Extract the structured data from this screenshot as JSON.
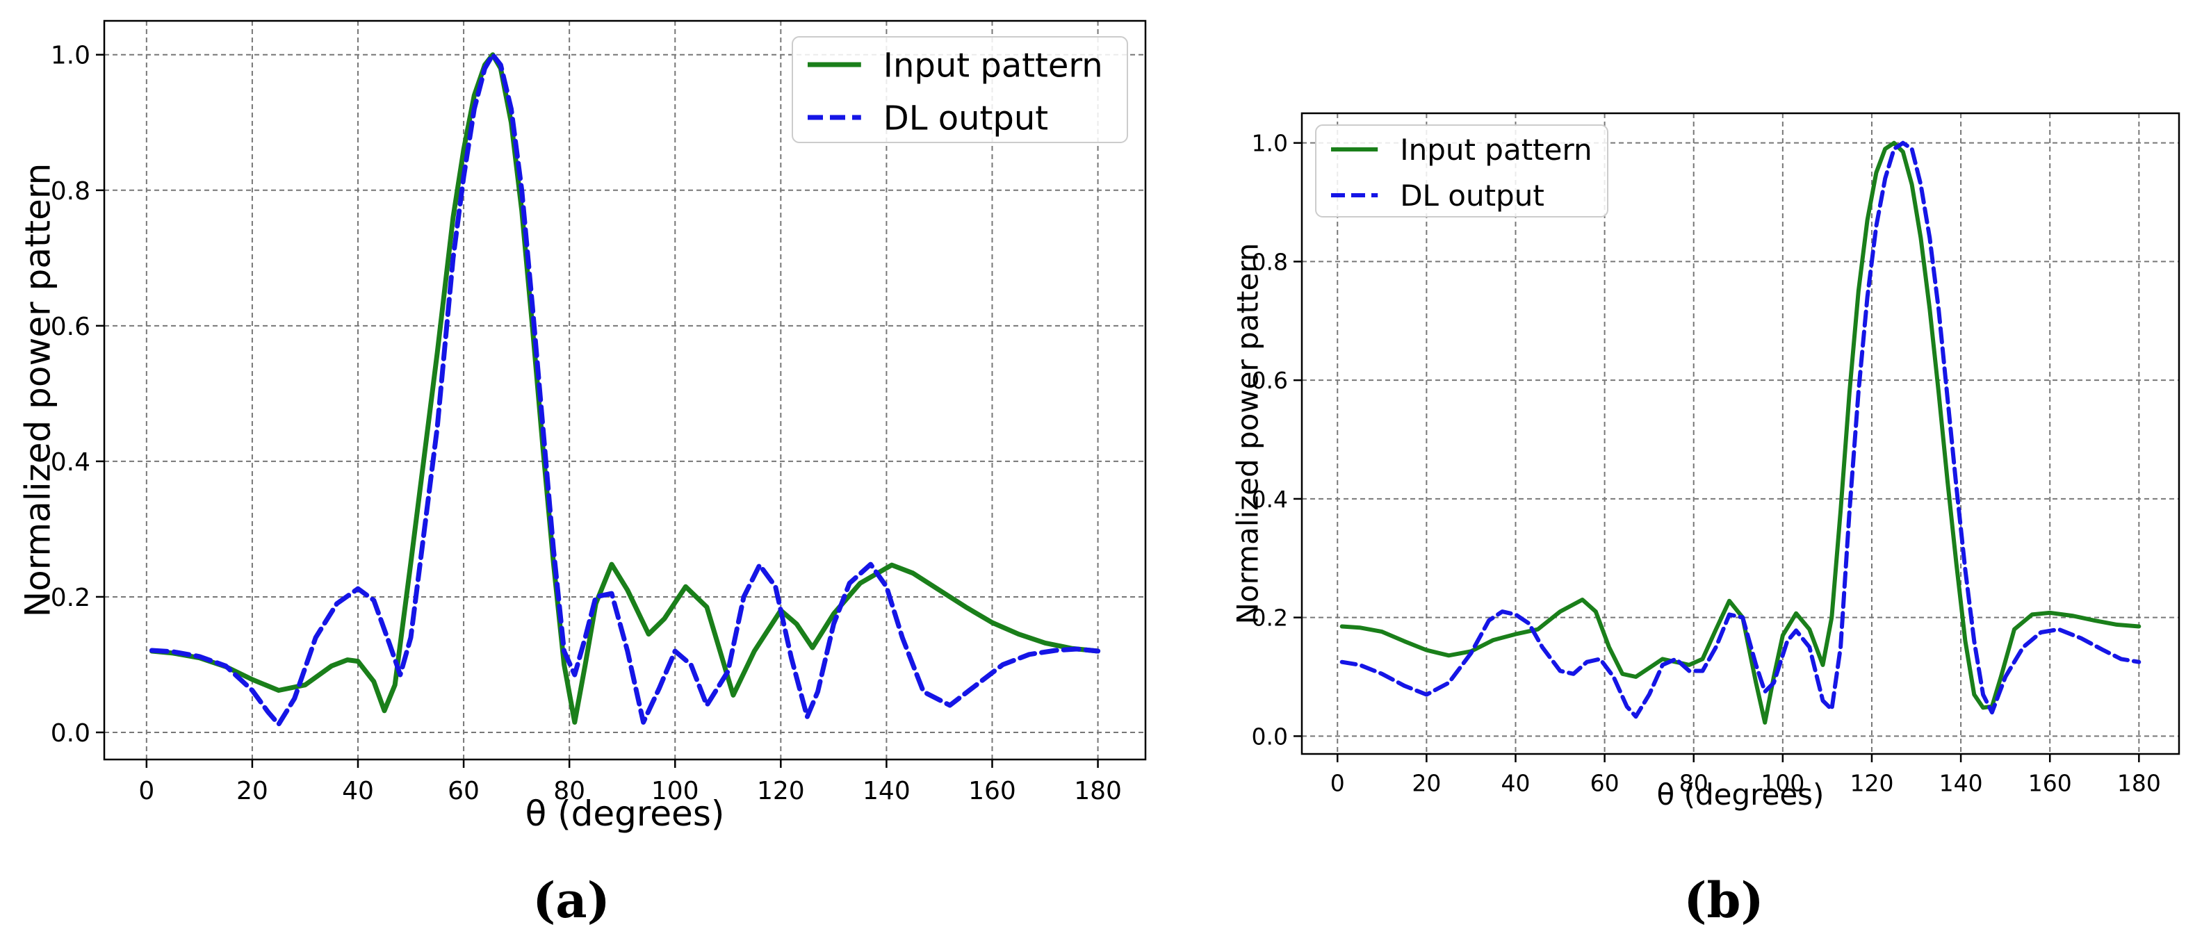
{
  "chart_data": [
    {
      "type": "line",
      "caption": "(a)",
      "xlabel": "θ (degrees)",
      "ylabel": "Normalized power pattern",
      "xlim": [
        -8,
        189
      ],
      "ylim": [
        -0.04,
        1.05
      ],
      "xticks": [
        0,
        20,
        40,
        60,
        80,
        100,
        120,
        140,
        160,
        180
      ],
      "yticks": [
        0.0,
        0.2,
        0.4,
        0.6,
        0.8,
        1.0
      ],
      "ytick_labels": [
        "0.0",
        "0.2",
        "0.4",
        "0.6",
        "0.8",
        "1.0"
      ],
      "grid": true,
      "legend_position": "top-right",
      "series": [
        {
          "name": "Input pattern",
          "color": "#1a7f1a",
          "style": "solid",
          "x": [
            1,
            5,
            10,
            15,
            20,
            25,
            30,
            35,
            38,
            40,
            43,
            45,
            47,
            50,
            55,
            58,
            60,
            62,
            64,
            65.5,
            67,
            69,
            71,
            73,
            75,
            77,
            79,
            81,
            83,
            85,
            88,
            91,
            95,
            98,
            102,
            106,
            111,
            115,
            120,
            123,
            126,
            130,
            135,
            141,
            145,
            150,
            155,
            160,
            165,
            170,
            175,
            180
          ],
          "y": [
            0.12,
            0.117,
            0.11,
            0.097,
            0.078,
            0.062,
            0.07,
            0.098,
            0.107,
            0.105,
            0.075,
            0.032,
            0.07,
            0.25,
            0.56,
            0.76,
            0.86,
            0.94,
            0.985,
            1.0,
            0.98,
            0.9,
            0.77,
            0.6,
            0.42,
            0.25,
            0.1,
            0.015,
            0.1,
            0.19,
            0.248,
            0.21,
            0.145,
            0.168,
            0.215,
            0.185,
            0.055,
            0.12,
            0.18,
            0.16,
            0.125,
            0.175,
            0.22,
            0.247,
            0.235,
            0.21,
            0.185,
            0.162,
            0.145,
            0.132,
            0.124,
            0.12
          ]
        },
        {
          "name": "DL output",
          "color": "#1515e6",
          "style": "dashed",
          "x": [
            1,
            5,
            10,
            15,
            20,
            23,
            25,
            28,
            32,
            36,
            40,
            43,
            46,
            48,
            50,
            55,
            58,
            60,
            62,
            64,
            65.5,
            67,
            69,
            71,
            73,
            75,
            77,
            79,
            81,
            83,
            85,
            88,
            91,
            94,
            97,
            100,
            103,
            106,
            110,
            113,
            116,
            119,
            122,
            125,
            127,
            130,
            133,
            137,
            140,
            143,
            147,
            152,
            157,
            162,
            167,
            172,
            176,
            180
          ],
          "y": [
            0.121,
            0.119,
            0.112,
            0.098,
            0.062,
            0.03,
            0.012,
            0.05,
            0.14,
            0.19,
            0.212,
            0.195,
            0.13,
            0.085,
            0.14,
            0.45,
            0.7,
            0.82,
            0.92,
            0.98,
            1.0,
            0.985,
            0.92,
            0.8,
            0.63,
            0.45,
            0.27,
            0.12,
            0.085,
            0.14,
            0.2,
            0.205,
            0.12,
            0.015,
            0.065,
            0.12,
            0.1,
            0.04,
            0.09,
            0.2,
            0.247,
            0.215,
            0.11,
            0.023,
            0.06,
            0.16,
            0.22,
            0.248,
            0.215,
            0.14,
            0.06,
            0.04,
            0.07,
            0.1,
            0.115,
            0.121,
            0.123,
            0.12
          ]
        }
      ]
    },
    {
      "type": "line",
      "caption": "(b)",
      "xlabel": "θ (degrees)",
      "ylabel": "Normalized power pattern",
      "xlim": [
        -8,
        189
      ],
      "ylim": [
        -0.03,
        1.05
      ],
      "xticks": [
        0,
        20,
        40,
        60,
        80,
        100,
        120,
        140,
        160,
        180
      ],
      "yticks": [
        0.0,
        0.2,
        0.4,
        0.6,
        0.8,
        1.0
      ],
      "ytick_labels": [
        "0.0",
        "0.2",
        "0.4",
        "0.6",
        "0.8",
        "1.0"
      ],
      "grid": true,
      "legend_position": "top-left",
      "series": [
        {
          "name": "Input pattern",
          "color": "#1a7f1a",
          "style": "solid",
          "x": [
            1,
            5,
            10,
            15,
            20,
            25,
            30,
            35,
            40,
            45,
            50,
            55,
            58,
            61,
            64,
            67,
            70,
            73,
            76,
            79,
            82,
            85,
            88,
            91,
            94,
            96,
            98,
            100,
            103,
            106,
            109,
            111,
            113,
            115,
            117,
            119,
            121,
            123,
            125,
            127,
            129,
            131,
            133,
            135,
            137,
            139,
            141,
            143,
            145,
            147,
            149,
            152,
            156,
            160,
            165,
            170,
            175,
            180
          ],
          "y": [
            0.185,
            0.183,
            0.176,
            0.16,
            0.145,
            0.136,
            0.143,
            0.162,
            0.172,
            0.18,
            0.21,
            0.23,
            0.21,
            0.15,
            0.105,
            0.1,
            0.115,
            0.13,
            0.125,
            0.12,
            0.13,
            0.18,
            0.228,
            0.2,
            0.09,
            0.023,
            0.1,
            0.17,
            0.207,
            0.18,
            0.12,
            0.2,
            0.38,
            0.58,
            0.75,
            0.87,
            0.95,
            0.99,
            1.0,
            0.985,
            0.93,
            0.84,
            0.72,
            0.58,
            0.43,
            0.29,
            0.16,
            0.07,
            0.048,
            0.05,
            0.1,
            0.18,
            0.205,
            0.208,
            0.203,
            0.195,
            0.188,
            0.185
          ]
        },
        {
          "name": "DL output",
          "color": "#1515e6",
          "style": "dashed",
          "x": [
            1,
            5,
            10,
            15,
            20,
            25,
            30,
            34,
            37,
            40,
            43,
            46,
            50,
            53,
            56,
            59,
            62,
            65,
            67,
            70,
            73,
            76,
            79,
            82,
            85,
            88,
            91,
            94,
            96,
            98,
            101,
            103,
            106,
            109,
            111,
            113,
            115,
            117,
            119,
            121,
            123,
            125,
            127,
            129,
            131,
            133,
            135,
            137,
            139,
            141,
            143,
            145,
            147,
            150,
            154,
            158,
            162,
            167,
            172,
            176,
            180
          ],
          "y": [
            0.125,
            0.12,
            0.105,
            0.085,
            0.07,
            0.09,
            0.14,
            0.195,
            0.21,
            0.205,
            0.19,
            0.15,
            0.11,
            0.105,
            0.125,
            0.13,
            0.1,
            0.05,
            0.033,
            0.07,
            0.12,
            0.13,
            0.11,
            0.11,
            0.15,
            0.205,
            0.2,
            0.12,
            0.075,
            0.09,
            0.16,
            0.178,
            0.15,
            0.06,
            0.045,
            0.15,
            0.38,
            0.58,
            0.74,
            0.86,
            0.94,
            0.99,
            1.0,
            0.99,
            0.93,
            0.84,
            0.72,
            0.57,
            0.42,
            0.28,
            0.16,
            0.07,
            0.04,
            0.1,
            0.15,
            0.175,
            0.18,
            0.165,
            0.145,
            0.13,
            0.125
          ]
        }
      ]
    }
  ]
}
